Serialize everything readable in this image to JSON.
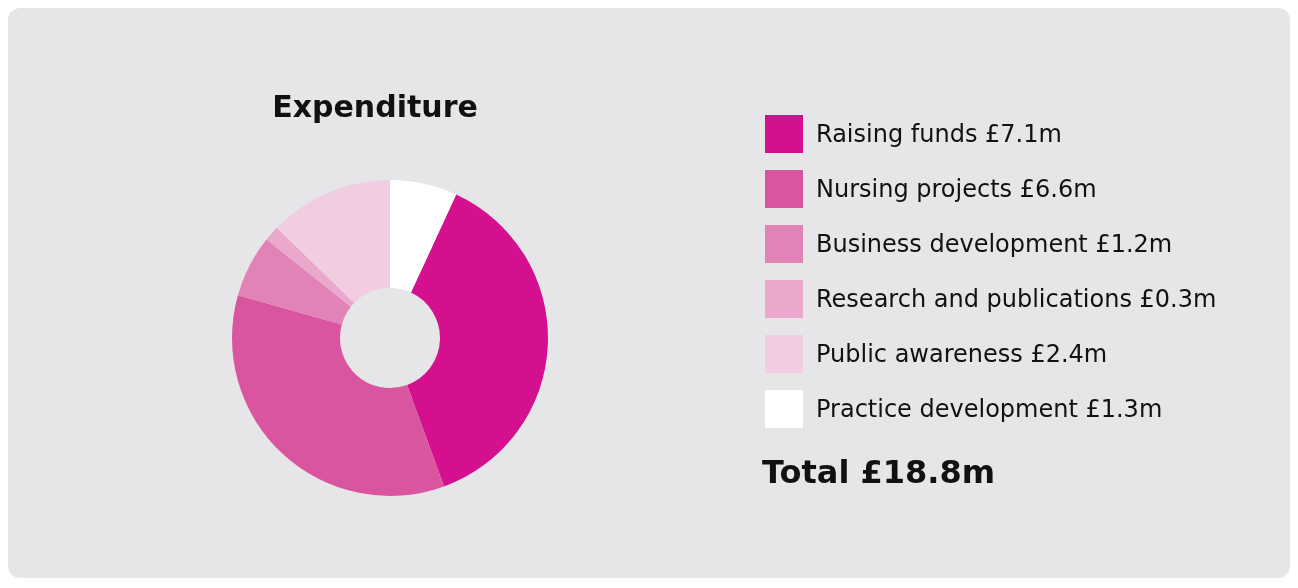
{
  "chart_data": {
    "type": "donut",
    "title": "Expenditure",
    "categories": [
      "Raising funds",
      "Nursing projects",
      "Business development",
      "Research and publications",
      "Public awareness",
      "Practice development"
    ],
    "values": [
      7.1,
      6.6,
      1.2,
      0.3,
      2.4,
      1.3
    ],
    "value_labels": [
      "£7.1m",
      "£6.6m",
      "£1.2m",
      "£0.3m",
      "£2.4m",
      "£1.3m"
    ],
    "colors": [
      "#d4108f",
      "#d9559f",
      "#e183b7",
      "#eaa8cc",
      "#f2cde2",
      "#ffffff"
    ],
    "legend": "right",
    "annotations": [
      "Total £18.8m"
    ]
  }
}
